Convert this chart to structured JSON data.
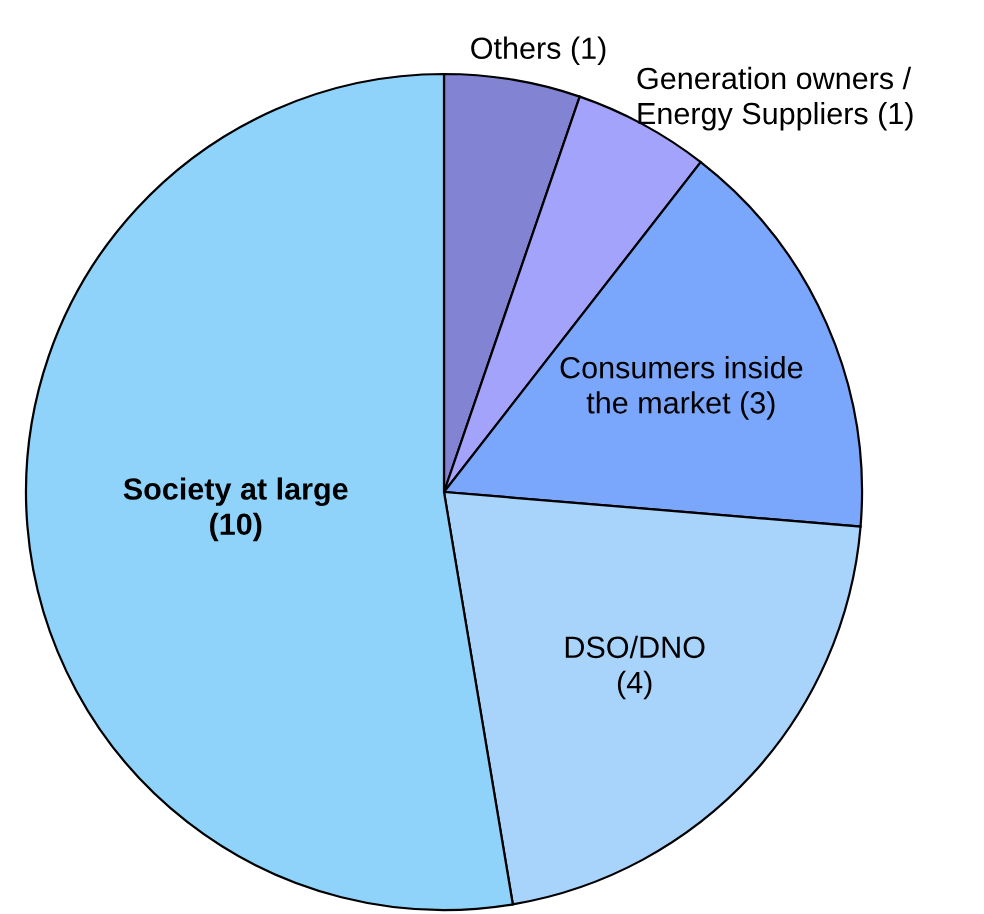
{
  "chart_data": {
    "type": "pie",
    "categories": [
      "Others (1)",
      "Generation owners /\nEnergy Suppliers (1)",
      "Consumers inside\nthe market (3)",
      "DSO/DNO\n(4)",
      "Society at large\n(10)"
    ],
    "values": [
      1,
      1,
      3,
      4,
      10
    ],
    "colors": [
      "#8383d3",
      "#a3a3fb",
      "#7aa7fb",
      "#a8d3fb",
      "#8fd3fb"
    ]
  }
}
